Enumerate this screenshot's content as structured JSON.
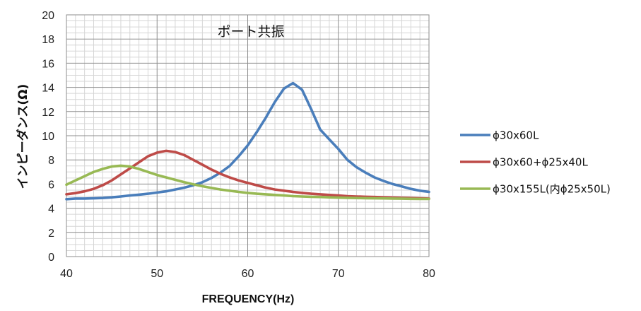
{
  "chart_data": {
    "type": "line",
    "title": "ポート共振",
    "xlabel": "FREQUENCY(Hz)",
    "ylabel": "インピーダンス(Ω)",
    "xlim": [
      40,
      80
    ],
    "ylim": [
      0,
      20
    ],
    "x_ticks": [
      "40",
      "50",
      "60",
      "70",
      "80"
    ],
    "y_ticks": [
      "0",
      "2",
      "4",
      "6",
      "8",
      "10",
      "12",
      "14",
      "16",
      "18",
      "20"
    ],
    "grid": true,
    "legend_position": "right",
    "x": [
      40,
      41,
      42,
      43,
      44,
      45,
      46,
      47,
      48,
      49,
      50,
      51,
      52,
      53,
      54,
      55,
      56,
      57,
      58,
      59,
      60,
      61,
      62,
      63,
      64,
      65,
      66,
      67,
      68,
      69,
      70,
      71,
      72,
      73,
      74,
      75,
      76,
      77,
      78,
      79,
      80
    ],
    "series": [
      {
        "name": "ϕ30x60L",
        "color": "#4a7ebb",
        "values": [
          4.75,
          4.8,
          4.8,
          4.82,
          4.85,
          4.9,
          4.97,
          5.05,
          5.12,
          5.2,
          5.3,
          5.4,
          5.55,
          5.7,
          5.9,
          6.15,
          6.5,
          6.95,
          7.5,
          8.3,
          9.2,
          10.3,
          11.5,
          12.8,
          13.9,
          14.35,
          13.8,
          12.2,
          10.5,
          9.7,
          8.9,
          8.0,
          7.4,
          6.95,
          6.55,
          6.25,
          6.0,
          5.8,
          5.6,
          5.45,
          5.35
        ]
      },
      {
        "name": "ϕ30x60+ϕ25x40L",
        "color": "#be4b48",
        "values": [
          5.15,
          5.25,
          5.4,
          5.6,
          5.9,
          6.3,
          6.8,
          7.3,
          7.8,
          8.3,
          8.6,
          8.75,
          8.65,
          8.4,
          8.0,
          7.6,
          7.2,
          6.85,
          6.55,
          6.3,
          6.1,
          5.9,
          5.7,
          5.55,
          5.45,
          5.35,
          5.27,
          5.2,
          5.15,
          5.1,
          5.05,
          5.0,
          4.97,
          4.95,
          4.93,
          4.9,
          4.88,
          4.86,
          4.84,
          4.82,
          4.8
        ]
      },
      {
        "name": "ϕ30x155L(内ϕ25x50L)",
        "color": "#98b954",
        "values": [
          5.95,
          6.3,
          6.65,
          7.0,
          7.25,
          7.45,
          7.52,
          7.45,
          7.25,
          7.0,
          6.75,
          6.55,
          6.35,
          6.15,
          5.98,
          5.82,
          5.68,
          5.55,
          5.45,
          5.35,
          5.27,
          5.2,
          5.15,
          5.1,
          5.05,
          5.0,
          4.97,
          4.95,
          4.93,
          4.9,
          4.88,
          4.86,
          4.84,
          4.83,
          4.82,
          4.81,
          4.8,
          4.79,
          4.78,
          4.77,
          4.77
        ]
      }
    ]
  }
}
